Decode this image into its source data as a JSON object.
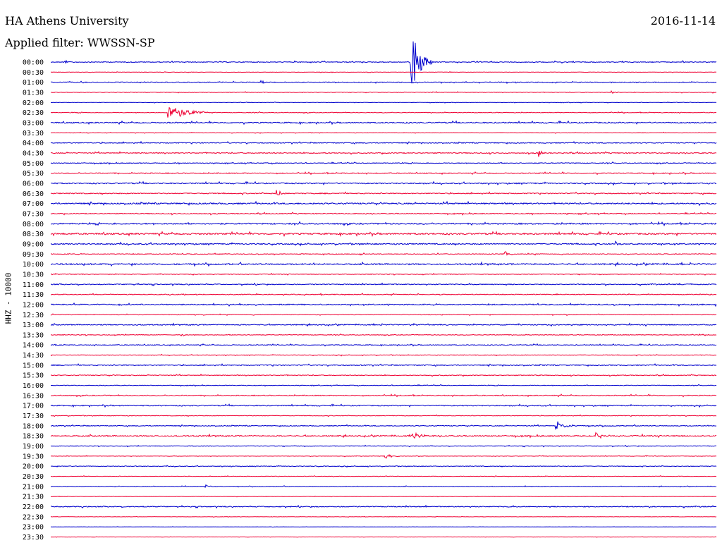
{
  "header": {
    "station": "HA Athens University",
    "date": "2016-11-14",
    "filter": "Applied filter: WWSSN-SP"
  },
  "chart_data": {
    "type": "line",
    "title": "HA Athens University",
    "ylabel": "HHZ - 10000",
    "colors": {
      "even": "#0000cc",
      "odd": "#ee0033"
    },
    "rows": [
      "00:00",
      "00:30",
      "01:00",
      "01:30",
      "02:00",
      "02:30",
      "03:00",
      "03:30",
      "04:00",
      "04:30",
      "05:00",
      "05:30",
      "06:00",
      "06:30",
      "07:00",
      "07:30",
      "08:00",
      "08:30",
      "09:00",
      "09:30",
      "10:00",
      "10:30",
      "11:00",
      "11:30",
      "12:00",
      "12:30",
      "13:00",
      "13:30",
      "14:00",
      "14:30",
      "15:00",
      "15:30",
      "16:00",
      "16:30",
      "17:00",
      "17:30",
      "18:00",
      "18:30",
      "19:00",
      "19:30",
      "20:00",
      "20:30",
      "21:00",
      "21:30",
      "22:00",
      "22:30",
      "23:00",
      "23:30"
    ],
    "noise": [
      1.0,
      0.5,
      1.0,
      0.7,
      0.5,
      0.8,
      1.5,
      0.6,
      1.2,
      1.2,
      1.0,
      1.2,
      1.5,
      1.3,
      1.8,
      1.2,
      1.8,
      2.0,
      1.5,
      1.0,
      1.8,
      0.8,
      1.2,
      1.0,
      1.5,
      0.8,
      1.3,
      0.8,
      1.0,
      0.8,
      1.2,
      1.0,
      0.8,
      1.2,
      1.3,
      0.8,
      1.0,
      1.5,
      0.8,
      0.6,
      0.8,
      0.6,
      0.7,
      0.4,
      1.2,
      0.4,
      0.3,
      0.3
    ],
    "events": [
      {
        "row": 0,
        "minute": 0.65,
        "amp": 4,
        "dur": 0.15
      },
      {
        "row": 0,
        "minute": 16.25,
        "amp": 45,
        "dur": 1.0
      },
      {
        "row": 0,
        "minute": 28.5,
        "amp": 3,
        "dur": 0.15
      },
      {
        "row": 2,
        "minute": 9.5,
        "amp": 2,
        "dur": 0.8
      },
      {
        "row": 3,
        "minute": 25.3,
        "amp": 2,
        "dur": 0.6
      },
      {
        "row": 5,
        "minute": 5.3,
        "amp": 12,
        "dur": 2.0
      },
      {
        "row": 9,
        "minute": 22.0,
        "amp": 6,
        "dur": 0.4
      },
      {
        "row": 13,
        "minute": 10.2,
        "amp": 6,
        "dur": 0.4
      },
      {
        "row": 18,
        "minute": 25.5,
        "amp": 3,
        "dur": 0.3
      },
      {
        "row": 19,
        "minute": 20.5,
        "amp": 4,
        "dur": 0.2
      },
      {
        "row": 27,
        "minute": 5.9,
        "amp": 4,
        "dur": 0.2
      },
      {
        "row": 36,
        "minute": 22.8,
        "amp": 7,
        "dur": 1.0
      },
      {
        "row": 37,
        "minute": 16.3,
        "amp": 4,
        "dur": 1.0
      },
      {
        "row": 37,
        "minute": 24.6,
        "amp": 4,
        "dur": 1.0
      },
      {
        "row": 39,
        "minute": 15.1,
        "amp": 3,
        "dur": 0.8
      },
      {
        "row": 42,
        "minute": 7.0,
        "amp": 2,
        "dur": 0.8
      }
    ],
    "xlim": [
      0,
      30
    ],
    "grid": false,
    "legend": "none"
  }
}
